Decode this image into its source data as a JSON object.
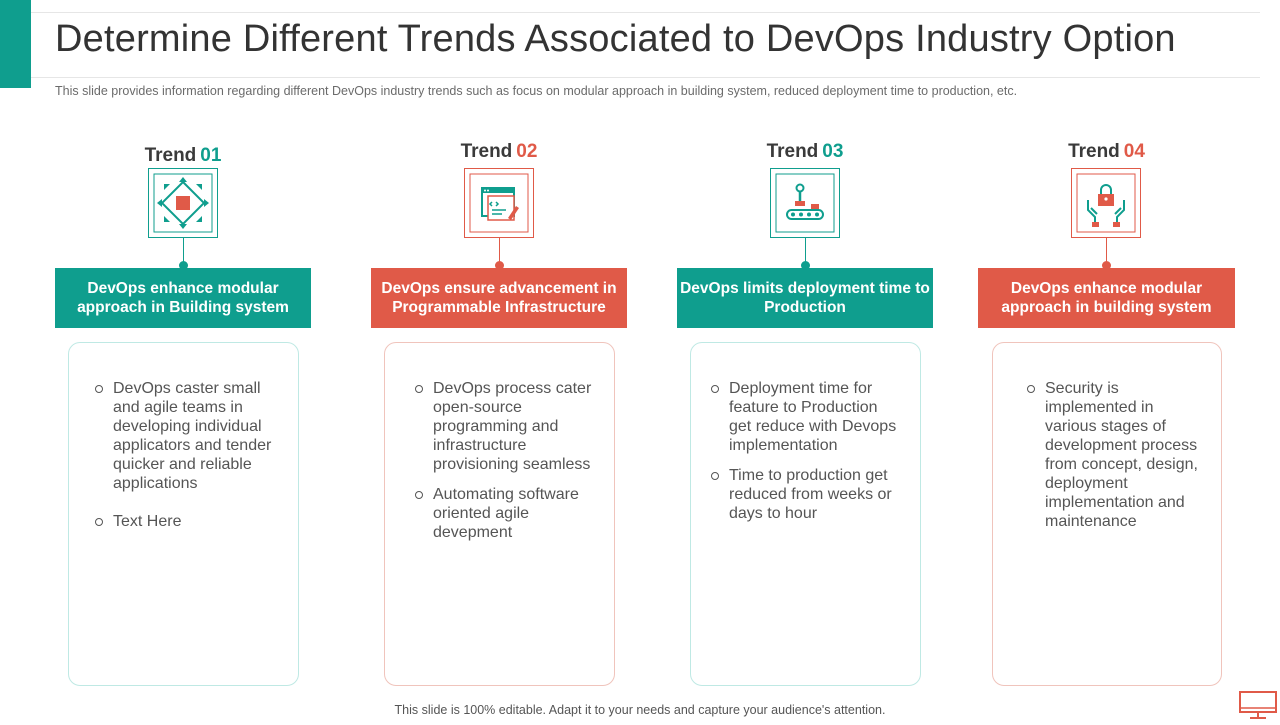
{
  "title": "Determine Different Trends Associated to DevOps Industry Option",
  "subtitle": "This slide provides information regarding different DevOps industry trends such as focus on modular approach in building system, reduced deployment time to production, etc.",
  "colors": {
    "teal": "#0f9e8e",
    "red": "#e05a48"
  },
  "trends": [
    {
      "label": "Trend",
      "number": "01",
      "accent": "teal",
      "icon": "modular-chip-icon",
      "banner": "DevOps enhance modular approach in Building system",
      "points": [
        "DevOps caster small and agile teams in developing individual applicators and tender quicker and reliable applications",
        "Text Here"
      ]
    },
    {
      "label": "Trend",
      "number": "02",
      "accent": "red",
      "icon": "code-window-icon",
      "banner": "DevOps ensure advancement in Programmable Infrastructure",
      "points": [
        "DevOps process cater open-source programming and infrastructure provisioning seamless",
        "Automating software oriented agile devepment"
      ]
    },
    {
      "label": "Trend",
      "number": "03",
      "accent": "teal",
      "icon": "conveyor-robot-icon",
      "banner": "DevOps limits deployment time to Production",
      "points": [
        "Deployment time for feature to Production get reduce with Devops implementation",
        "Time to production get reduced from weeks or days to hour"
      ]
    },
    {
      "label": "Trend",
      "number": "04",
      "accent": "red",
      "icon": "security-lock-hands-icon",
      "banner": "DevOps enhance modular approach in building system",
      "points": [
        "Security is implemented in various stages of development process from concept, design, deployment implementation and maintenance"
      ]
    }
  ],
  "footer": "This slide is 100% editable. Adapt it to your needs and capture your audience's attention."
}
